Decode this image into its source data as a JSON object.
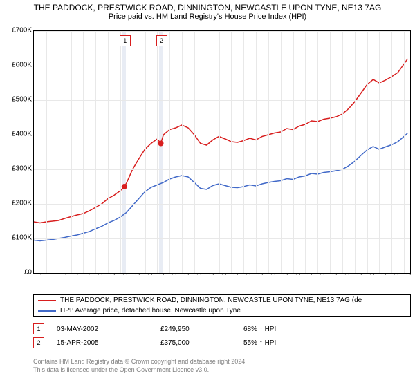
{
  "title": "THE PADDOCK, PRESTWICK ROAD, DINNINGTON, NEWCASTLE UPON TYNE, NE13 7AG",
  "subtitle": "Price paid vs. HM Land Registry's House Price Index (HPI)",
  "chart": {
    "type": "line",
    "background_color": "#ffffff",
    "grid_color": "#e8e8e8",
    "border_color": "#000000",
    "xlim": [
      1995,
      2025.5
    ],
    "ylim": [
      0,
      700000
    ],
    "ytick_step": 100000,
    "yticks": [
      "£0",
      "£100K",
      "£200K",
      "£300K",
      "£400K",
      "£500K",
      "£600K",
      "£700K"
    ],
    "xticks": [
      1995,
      1996,
      1997,
      1998,
      1999,
      2000,
      2001,
      2002,
      2003,
      2004,
      2005,
      2006,
      2007,
      2008,
      2009,
      2010,
      2011,
      2012,
      2013,
      2014,
      2015,
      2016,
      2017,
      2018,
      2019,
      2020,
      2021,
      2022,
      2023,
      2024,
      2025
    ],
    "label_fontsize": 10,
    "title_fontsize": 12,
    "series": [
      {
        "name": "THE PADDOCK, PRESTWICK ROAD, DINNINGTON, NEWCASTLE UPON TYNE, NE13 7AG (de",
        "color": "#d81e1e",
        "line_width": 1.5,
        "data": [
          [
            1995,
            148000
          ],
          [
            1995.5,
            145000
          ],
          [
            1996,
            148000
          ],
          [
            1996.5,
            150000
          ],
          [
            1997,
            152000
          ],
          [
            1997.5,
            158000
          ],
          [
            1998,
            163000
          ],
          [
            1998.5,
            168000
          ],
          [
            1999,
            172000
          ],
          [
            1999.5,
            180000
          ],
          [
            2000,
            190000
          ],
          [
            2000.5,
            200000
          ],
          [
            2001,
            215000
          ],
          [
            2001.5,
            225000
          ],
          [
            2002,
            238000
          ],
          [
            2002.33,
            249950
          ],
          [
            2002.5,
            260000
          ],
          [
            2003,
            300000
          ],
          [
            2003.5,
            330000
          ],
          [
            2004,
            358000
          ],
          [
            2004.5,
            375000
          ],
          [
            2005,
            388000
          ],
          [
            2005.29,
            375000
          ],
          [
            2005.5,
            400000
          ],
          [
            2006,
            415000
          ],
          [
            2006.5,
            420000
          ],
          [
            2007,
            428000
          ],
          [
            2007.5,
            420000
          ],
          [
            2008,
            400000
          ],
          [
            2008.5,
            375000
          ],
          [
            2009,
            370000
          ],
          [
            2009.5,
            385000
          ],
          [
            2010,
            395000
          ],
          [
            2010.5,
            388000
          ],
          [
            2011,
            380000
          ],
          [
            2011.5,
            378000
          ],
          [
            2012,
            383000
          ],
          [
            2012.5,
            390000
          ],
          [
            2013,
            385000
          ],
          [
            2013.5,
            395000
          ],
          [
            2014,
            400000
          ],
          [
            2014.5,
            405000
          ],
          [
            2015,
            408000
          ],
          [
            2015.5,
            418000
          ],
          [
            2016,
            415000
          ],
          [
            2016.5,
            425000
          ],
          [
            2017,
            430000
          ],
          [
            2017.5,
            440000
          ],
          [
            2018,
            438000
          ],
          [
            2018.5,
            445000
          ],
          [
            2019,
            448000
          ],
          [
            2019.5,
            452000
          ],
          [
            2020,
            460000
          ],
          [
            2020.5,
            475000
          ],
          [
            2021,
            495000
          ],
          [
            2021.5,
            520000
          ],
          [
            2022,
            545000
          ],
          [
            2022.5,
            560000
          ],
          [
            2023,
            550000
          ],
          [
            2023.5,
            558000
          ],
          [
            2024,
            568000
          ],
          [
            2024.5,
            580000
          ],
          [
            2025,
            605000
          ],
          [
            2025.3,
            620000
          ]
        ]
      },
      {
        "name": "HPI: Average price, detached house, Newcastle upon Tyne",
        "color": "#4169c8",
        "line_width": 1.5,
        "data": [
          [
            1995,
            95000
          ],
          [
            1995.5,
            93000
          ],
          [
            1996,
            95000
          ],
          [
            1996.5,
            97000
          ],
          [
            1997,
            100000
          ],
          [
            1997.5,
            103000
          ],
          [
            1998,
            107000
          ],
          [
            1998.5,
            110000
          ],
          [
            1999,
            115000
          ],
          [
            1999.5,
            120000
          ],
          [
            2000,
            128000
          ],
          [
            2000.5,
            135000
          ],
          [
            2001,
            145000
          ],
          [
            2001.5,
            152000
          ],
          [
            2002,
            162000
          ],
          [
            2002.5,
            175000
          ],
          [
            2003,
            195000
          ],
          [
            2003.5,
            215000
          ],
          [
            2004,
            235000
          ],
          [
            2004.5,
            248000
          ],
          [
            2005,
            255000
          ],
          [
            2005.5,
            262000
          ],
          [
            2006,
            272000
          ],
          [
            2006.5,
            278000
          ],
          [
            2007,
            282000
          ],
          [
            2007.5,
            278000
          ],
          [
            2008,
            262000
          ],
          [
            2008.5,
            245000
          ],
          [
            2009,
            242000
          ],
          [
            2009.5,
            253000
          ],
          [
            2010,
            258000
          ],
          [
            2010.5,
            253000
          ],
          [
            2011,
            248000
          ],
          [
            2011.5,
            247000
          ],
          [
            2012,
            250000
          ],
          [
            2012.5,
            255000
          ],
          [
            2013,
            252000
          ],
          [
            2013.5,
            258000
          ],
          [
            2014,
            262000
          ],
          [
            2014.5,
            265000
          ],
          [
            2015,
            267000
          ],
          [
            2015.5,
            273000
          ],
          [
            2016,
            271000
          ],
          [
            2016.5,
            278000
          ],
          [
            2017,
            281000
          ],
          [
            2017.5,
            288000
          ],
          [
            2018,
            286000
          ],
          [
            2018.5,
            291000
          ],
          [
            2019,
            293000
          ],
          [
            2019.5,
            296000
          ],
          [
            2020,
            300000
          ],
          [
            2020.5,
            310000
          ],
          [
            2021,
            323000
          ],
          [
            2021.5,
            340000
          ],
          [
            2022,
            356000
          ],
          [
            2022.5,
            366000
          ],
          [
            2023,
            358000
          ],
          [
            2023.5,
            365000
          ],
          [
            2024,
            371000
          ],
          [
            2024.5,
            380000
          ],
          [
            2025,
            395000
          ],
          [
            2025.3,
            405000
          ]
        ]
      }
    ],
    "markers": [
      {
        "num": "1",
        "x": 2002.33,
        "y": 249950,
        "band_x": 2002.2,
        "band_width": 0.25
      },
      {
        "num": "2",
        "x": 2005.29,
        "y": 375000,
        "band_x": 2005.15,
        "band_width": 0.28
      }
    ]
  },
  "legend": {
    "items": [
      {
        "color": "#d81e1e",
        "label": "THE PADDOCK, PRESTWICK ROAD, DINNINGTON, NEWCASTLE UPON TYNE, NE13 7AG (de"
      },
      {
        "color": "#4169c8",
        "label": "HPI: Average price, detached house, Newcastle upon Tyne"
      }
    ]
  },
  "sales": [
    {
      "num": "1",
      "date": "03-MAY-2002",
      "price": "£249,950",
      "pct": "68% ↑ HPI"
    },
    {
      "num": "2",
      "date": "15-APR-2005",
      "price": "£375,000",
      "pct": "55% ↑ HPI"
    }
  ],
  "footer_line1": "Contains HM Land Registry data © Crown copyright and database right 2024.",
  "footer_line2": "This data is licensed under the Open Government Licence v3.0.",
  "marker_border_color": "#d81e1e"
}
